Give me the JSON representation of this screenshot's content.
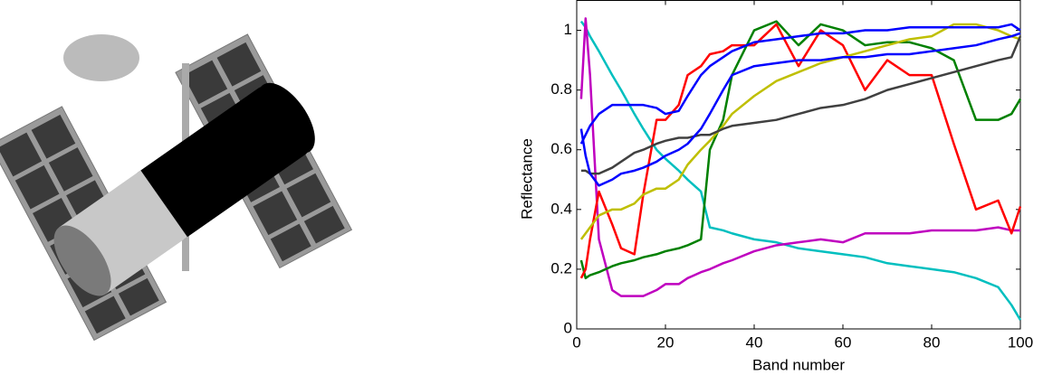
{
  "chart_data": {
    "type": "line",
    "xlabel": "Band number",
    "ylabel": "Reflectance",
    "x": [
      1,
      2,
      3,
      5,
      8,
      10,
      13,
      15,
      18,
      20,
      23,
      25,
      28,
      30,
      33,
      35,
      40,
      45,
      50,
      55,
      60,
      65,
      70,
      75,
      80,
      85,
      90,
      95,
      98,
      100
    ],
    "xlim": [
      0,
      100
    ],
    "xticks": [
      0,
      20,
      40,
      60,
      80,
      100
    ],
    "ylim": [
      0,
      1.1
    ],
    "yticks": [
      0,
      0.2,
      0.4,
      0.6,
      0.8,
      1
    ],
    "grid": false,
    "series": [
      {
        "color": "#00bfbf",
        "values": [
          1.03,
          1.01,
          0.98,
          0.93,
          0.85,
          0.8,
          0.72,
          0.67,
          0.6,
          0.57,
          0.53,
          0.5,
          0.46,
          0.34,
          0.33,
          0.32,
          0.3,
          0.29,
          0.27,
          0.26,
          0.25,
          0.24,
          0.22,
          0.21,
          0.2,
          0.19,
          0.17,
          0.14,
          0.08,
          0.03
        ]
      },
      {
        "color": "#bf00bf",
        "values": [
          0.77,
          1.04,
          0.85,
          0.3,
          0.13,
          0.11,
          0.11,
          0.11,
          0.13,
          0.15,
          0.15,
          0.17,
          0.19,
          0.2,
          0.22,
          0.23,
          0.26,
          0.28,
          0.29,
          0.3,
          0.29,
          0.32,
          0.32,
          0.32,
          0.33,
          0.33,
          0.33,
          0.34,
          0.33,
          0.33
        ]
      },
      {
        "color": "#008000",
        "values": [
          0.23,
          0.17,
          0.18,
          0.19,
          0.21,
          0.22,
          0.23,
          0.24,
          0.25,
          0.26,
          0.27,
          0.28,
          0.3,
          0.6,
          0.7,
          0.85,
          1.0,
          1.03,
          0.95,
          1.02,
          1.0,
          0.95,
          0.96,
          0.96,
          0.94,
          0.9,
          0.7,
          0.7,
          0.72,
          0.77
        ]
      },
      {
        "color": "#ff0000",
        "values": [
          0.17,
          0.2,
          0.3,
          0.46,
          0.35,
          0.27,
          0.25,
          0.45,
          0.7,
          0.7,
          0.75,
          0.85,
          0.88,
          0.92,
          0.93,
          0.95,
          0.95,
          1.02,
          0.88,
          1.0,
          0.95,
          0.8,
          0.9,
          0.85,
          0.85,
          0.62,
          0.4,
          0.43,
          0.32,
          0.41
        ]
      },
      {
        "color": "#bfbf00",
        "values": [
          0.3,
          0.32,
          0.34,
          0.38,
          0.4,
          0.4,
          0.42,
          0.45,
          0.47,
          0.47,
          0.5,
          0.55,
          0.6,
          0.63,
          0.68,
          0.72,
          0.78,
          0.83,
          0.86,
          0.89,
          0.91,
          0.93,
          0.95,
          0.97,
          0.98,
          1.02,
          1.02,
          1.0,
          0.98,
          0.97
        ]
      },
      {
        "color": "#404040",
        "values": [
          0.53,
          0.53,
          0.52,
          0.52,
          0.54,
          0.56,
          0.59,
          0.6,
          0.62,
          0.63,
          0.64,
          0.64,
          0.65,
          0.65,
          0.67,
          0.68,
          0.69,
          0.7,
          0.72,
          0.74,
          0.75,
          0.77,
          0.8,
          0.82,
          0.84,
          0.86,
          0.88,
          0.9,
          0.91,
          0.98
        ]
      },
      {
        "color": "#0000ff",
        "values": [
          0.62,
          0.65,
          0.68,
          0.72,
          0.75,
          0.75,
          0.75,
          0.75,
          0.74,
          0.72,
          0.73,
          0.78,
          0.85,
          0.88,
          0.91,
          0.93,
          0.96,
          0.97,
          0.98,
          0.99,
          0.99,
          1.0,
          1.0,
          1.01,
          1.01,
          1.01,
          1.01,
          1.01,
          1.02,
          1.0
        ]
      },
      {
        "color": "#0000ff",
        "values": [
          0.67,
          0.58,
          0.52,
          0.48,
          0.5,
          0.52,
          0.53,
          0.54,
          0.56,
          0.58,
          0.6,
          0.62,
          0.67,
          0.72,
          0.8,
          0.85,
          0.88,
          0.89,
          0.9,
          0.9,
          0.91,
          0.91,
          0.92,
          0.92,
          0.93,
          0.94,
          0.95,
          0.97,
          0.98,
          0.99
        ]
      }
    ]
  }
}
